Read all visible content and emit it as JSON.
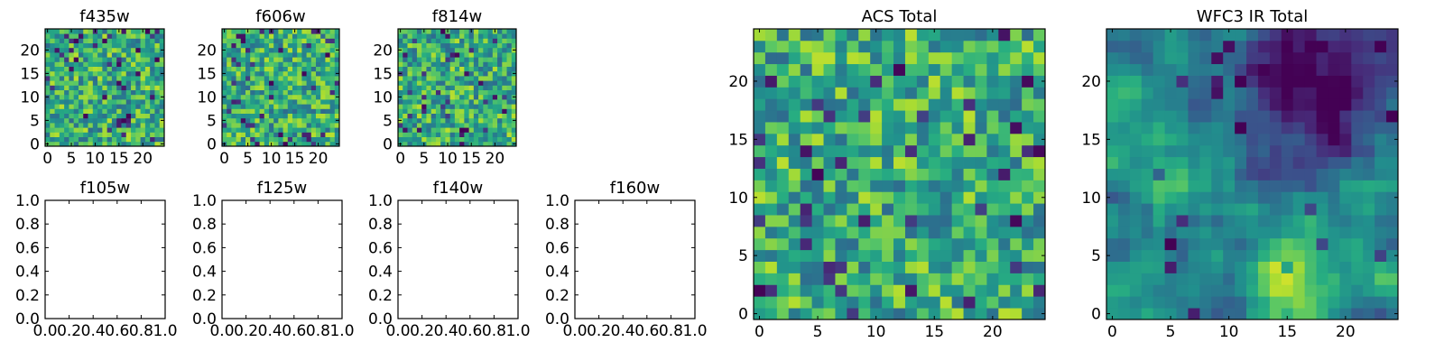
{
  "chart_data": [
    {
      "type": "heatmap",
      "title": "f435w",
      "xlim": [
        -0.5,
        24.5
      ],
      "ylim": [
        -0.5,
        24.5
      ],
      "xticks": [
        0,
        5,
        10,
        15,
        20
      ],
      "yticks": [
        0,
        5,
        10,
        15,
        20
      ],
      "grid_size": 25,
      "colormap": "viridis",
      "content": "noise"
    },
    {
      "type": "heatmap",
      "title": "f606w",
      "xlim": [
        -0.5,
        24.5
      ],
      "ylim": [
        -0.5,
        24.5
      ],
      "xticks": [
        0,
        5,
        10,
        15,
        20
      ],
      "yticks": [
        0,
        5,
        10,
        15,
        20
      ],
      "grid_size": 25,
      "colormap": "viridis",
      "content": "noise"
    },
    {
      "type": "heatmap",
      "title": "f814w",
      "xlim": [
        -0.5,
        24.5
      ],
      "ylim": [
        -0.5,
        24.5
      ],
      "xticks": [
        0,
        5,
        10,
        15,
        20
      ],
      "yticks": [
        0,
        5,
        10,
        15,
        20
      ],
      "grid_size": 25,
      "colormap": "viridis",
      "content": "noise"
    },
    {
      "type": "empty",
      "title": "f105w",
      "xlim": [
        0,
        1
      ],
      "ylim": [
        0,
        1
      ],
      "xticks": [
        0.0,
        0.2,
        0.4,
        0.6,
        0.8,
        1.0
      ],
      "yticks": [
        0.0,
        0.2,
        0.4,
        0.6,
        0.8,
        1.0
      ]
    },
    {
      "type": "empty",
      "title": "f125w",
      "xlim": [
        0,
        1
      ],
      "ylim": [
        0,
        1
      ],
      "xticks": [
        0.0,
        0.2,
        0.4,
        0.6,
        0.8,
        1.0
      ],
      "yticks": [
        0.0,
        0.2,
        0.4,
        0.6,
        0.8,
        1.0
      ]
    },
    {
      "type": "empty",
      "title": "f140w",
      "xlim": [
        0,
        1
      ],
      "ylim": [
        0,
        1
      ],
      "xticks": [
        0.0,
        0.2,
        0.4,
        0.6,
        0.8,
        1.0
      ],
      "yticks": [
        0.0,
        0.2,
        0.4,
        0.6,
        0.8,
        1.0
      ]
    },
    {
      "type": "empty",
      "title": "f160w",
      "xlim": [
        0,
        1
      ],
      "ylim": [
        0,
        1
      ],
      "xticks": [
        0.0,
        0.2,
        0.4,
        0.6,
        0.8,
        1.0
      ],
      "yticks": [
        0.0,
        0.2,
        0.4,
        0.6,
        0.8,
        1.0
      ]
    },
    {
      "type": "heatmap",
      "title": "ACS Total",
      "xlim": [
        -0.5,
        24.5
      ],
      "ylim": [
        -0.5,
        24.5
      ],
      "xticks": [
        0,
        5,
        10,
        15,
        20
      ],
      "yticks": [
        0,
        5,
        10,
        15,
        20
      ],
      "grid_size": 25,
      "colormap": "viridis",
      "content": "noise"
    },
    {
      "type": "heatmap",
      "title": "WFC3 IR Total",
      "xlim": [
        -0.5,
        24.5
      ],
      "ylim": [
        -0.5,
        24.5
      ],
      "xticks": [
        0,
        5,
        10,
        15,
        20
      ],
      "yticks": [
        0,
        5,
        10,
        15,
        20
      ],
      "grid_size": 25,
      "colormap": "viridis",
      "content": "smooth-with-dark-blob-upper-right"
    }
  ]
}
